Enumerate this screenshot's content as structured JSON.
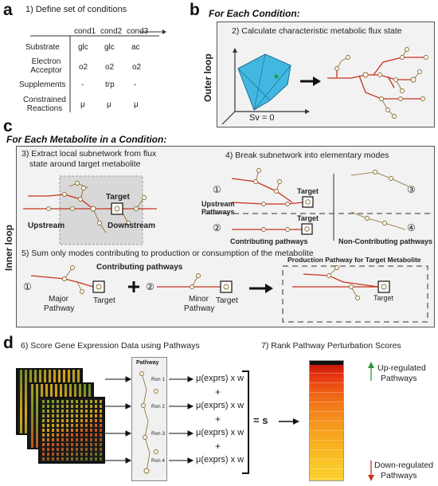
{
  "panels": {
    "a": {
      "label": "a",
      "title": "1) Define set of conditions",
      "columns": [
        "cond1",
        "cond2",
        "cond3"
      ],
      "rows": [
        {
          "label": "Substrate",
          "values": [
            "glc",
            "glc",
            "ac"
          ]
        },
        {
          "label": "Electron Acceptor",
          "values": [
            "o2",
            "o2",
            "o2"
          ]
        },
        {
          "label": "Supplements",
          "values": [
            "-",
            "trp",
            "-"
          ]
        },
        {
          "label": "Constrained Reactions",
          "values": [
            "μ",
            "μ",
            "μ"
          ]
        }
      ]
    },
    "b": {
      "label": "b",
      "heading": "For Each Condition:",
      "loop_label": "Outer loop",
      "title": "2) Calculate characteristic metabolic flux state",
      "equation": "Sv = 0"
    },
    "c": {
      "label": "c",
      "heading": "For Each Metabolite in a Condition:",
      "loop_label": "Inner loop",
      "step3": "3) Extract local subnetwork from flux state around target metabolite",
      "step3_line1": "3) Extract local subnetwork from flux",
      "step3_line2": "state around target metabolite",
      "upstream": "Upstream",
      "downstream": "Downstream",
      "target": "Target",
      "step4": "4) Break subnetwork into elementary modes",
      "upstream_pathways_1": "Upstream",
      "upstream_pathways_2": "Pathways",
      "contributing": "Contributing pathways",
      "non_contributing": "Non-Contributing pathways",
      "step5": "5) Sum only modes contributing to production or consumption of the metabolite",
      "contributing_pathways": "Contributing pathways",
      "major_1": "Major",
      "major_2": "Pathway",
      "minor_1": "Minor",
      "minor_2": "Pathway",
      "production_title": "Production Pathway for Target Metabolite",
      "n1": "①",
      "n2": "②",
      "n3": "③",
      "n4": "④"
    },
    "d": {
      "label": "d",
      "step6": "6) Score Gene Expression Data using Pathways",
      "step7": "7) Rank Pathway Perturbation Scores",
      "pathway_label": "Pathway",
      "reactions": [
        "Rxn 1",
        "Rxn 2",
        "Rxn 3",
        "Rxn 4"
      ],
      "formula": "μ(exprs) x w",
      "plus": "+",
      "equals": "= s",
      "up_1": "Up-regulated",
      "up_2": "Pathways",
      "down_1": "Down-regulated",
      "down_2": "Pathways"
    }
  },
  "colors": {
    "flux_red": "#c8331f",
    "node_brown": "#8a6a2a",
    "polytope_blue": "#42b8e0",
    "up_green": "#2a9a3a",
    "down_red": "#c8331f"
  }
}
